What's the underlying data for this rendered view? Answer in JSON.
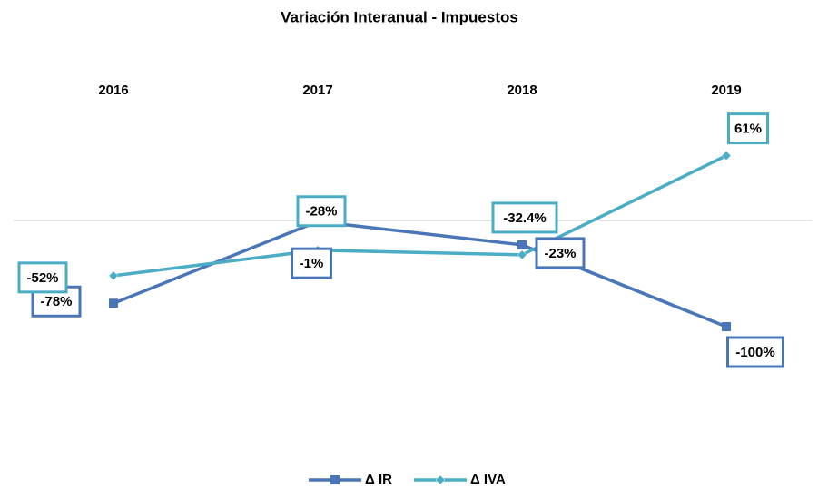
{
  "chart_data": {
    "type": "line",
    "title": "Variación Interanual - Impuestos",
    "categories": [
      "2016",
      "2017",
      "2018",
      "2019"
    ],
    "series": [
      {
        "name": "Δ IR",
        "color": "#4a76b8",
        "marker": "square",
        "values": [
          -78,
          -1,
          -23,
          -100
        ],
        "value_labels": [
          "-78%",
          "-1%",
          "-23%",
          "-100%"
        ]
      },
      {
        "name": "Δ IVA",
        "color": "#4bacc6",
        "marker": "diamond",
        "values": [
          -52,
          -28,
          -32.4,
          61
        ],
        "value_labels": [
          "-52%",
          "-28%",
          "-32.4%",
          "61%"
        ]
      }
    ],
    "ylim": [
      -200,
      100
    ],
    "legend": "bottom"
  }
}
